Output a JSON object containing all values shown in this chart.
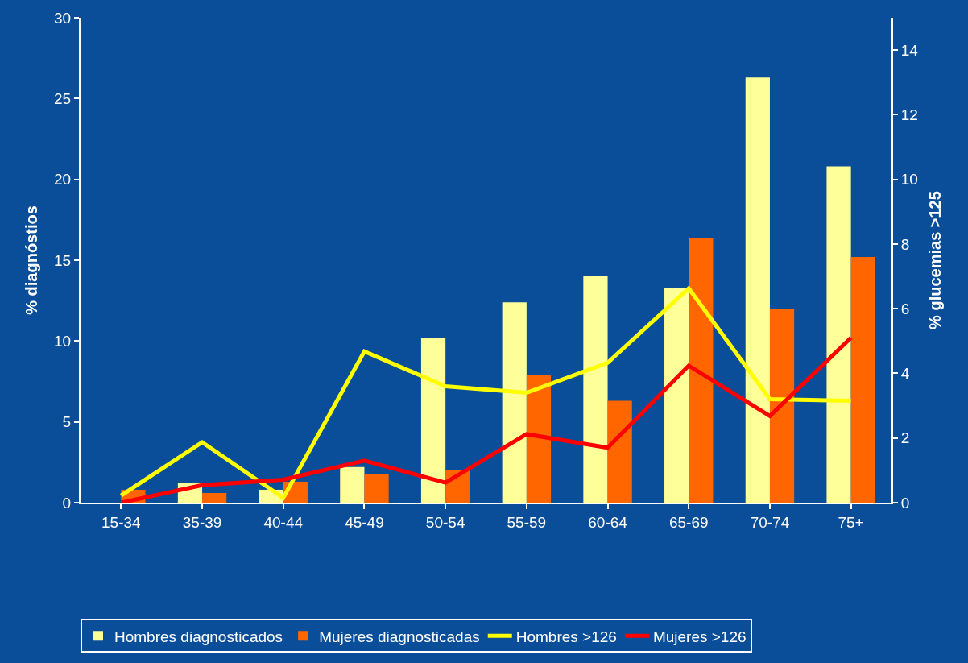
{
  "chart_data": {
    "type": "bar",
    "ylabel": "% diagnóstios",
    "y2label": "% glucemias >125",
    "categories": [
      "15-34",
      "35-39",
      "40-44",
      "45-49",
      "50-54",
      "55-59",
      "60-64",
      "65-69",
      "70-74",
      "75+"
    ],
    "series": [
      {
        "name": "Hombres diagnosticados",
        "color": "#ffff99",
        "values": [
          0,
          1.2,
          0.8,
          2.2,
          10.2,
          12.4,
          14.0,
          13.3,
          26.3,
          20.8
        ]
      },
      {
        "name": "Mujeres diagnosticadas",
        "color": "#ff6600",
        "values": [
          0.8,
          0.6,
          1.3,
          1.8,
          2.0,
          7.9,
          6.3,
          16.4,
          12.0,
          15.2
        ]
      },
      {
        "name": "Hombres >126",
        "color": "#ffff00",
        "type": "line",
        "axis": "y2",
        "values": [
          0.22,
          1.87,
          0.15,
          4.68,
          3.6,
          3.4,
          4.33,
          6.63,
          3.2,
          3.15
        ]
      },
      {
        "name": "Mujeres >126",
        "color": "#ff0000",
        "type": "line",
        "axis": "y2",
        "values": [
          0,
          0.54,
          0.71,
          1.3,
          0.62,
          2.12,
          1.7,
          4.24,
          2.68,
          5.1
        ]
      }
    ],
    "ylim": [
      0,
      30
    ],
    "yticks": [
      0,
      5,
      10,
      15,
      20,
      25,
      30
    ],
    "y2lim": [
      0,
      15
    ],
    "y2ticks": [
      0,
      2,
      4,
      6,
      8,
      10,
      12,
      14
    ],
    "grid": false,
    "legend": "bottom",
    "marker": "none",
    "line_style": "solid"
  }
}
